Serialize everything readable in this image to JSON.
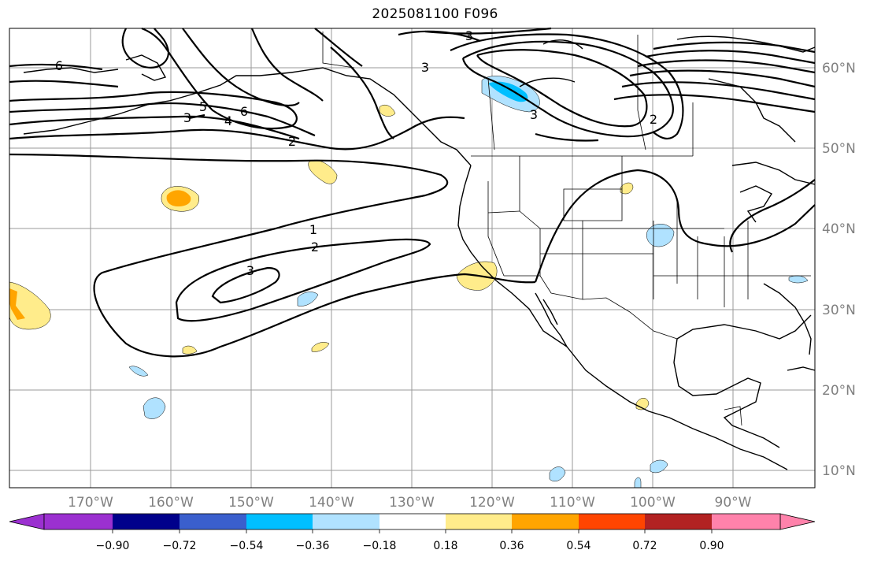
{
  "title": "2025081100 F096",
  "map": {
    "longitude_labels": [
      "170°W",
      "160°W",
      "150°W",
      "140°W",
      "130°W",
      "120°W",
      "110°W",
      "100°W",
      "90°W"
    ],
    "latitude_labels": [
      "60°N",
      "50°N",
      "40°N",
      "30°N",
      "20°N",
      "10°N"
    ],
    "contour_labels": [
      "6",
      "5",
      "6",
      "3",
      "4",
      "2",
      "3",
      "3",
      "3",
      "2",
      "1",
      "2",
      "3"
    ],
    "grid": "on"
  },
  "colorbar": {
    "tick_labels": [
      "−0.90",
      "−0.72",
      "−0.54",
      "−0.36",
      "−0.18",
      "0.18",
      "0.36",
      "0.54",
      "0.72",
      "0.90"
    ],
    "colors": [
      "#9b30d0",
      "#00008b",
      "#3a5fcd",
      "#00bfff",
      "#b0e2ff",
      "#ffffff",
      "#ffec8b",
      "#ffa500",
      "#ff4500",
      "#b22222",
      "#ff82ab"
    ]
  }
}
